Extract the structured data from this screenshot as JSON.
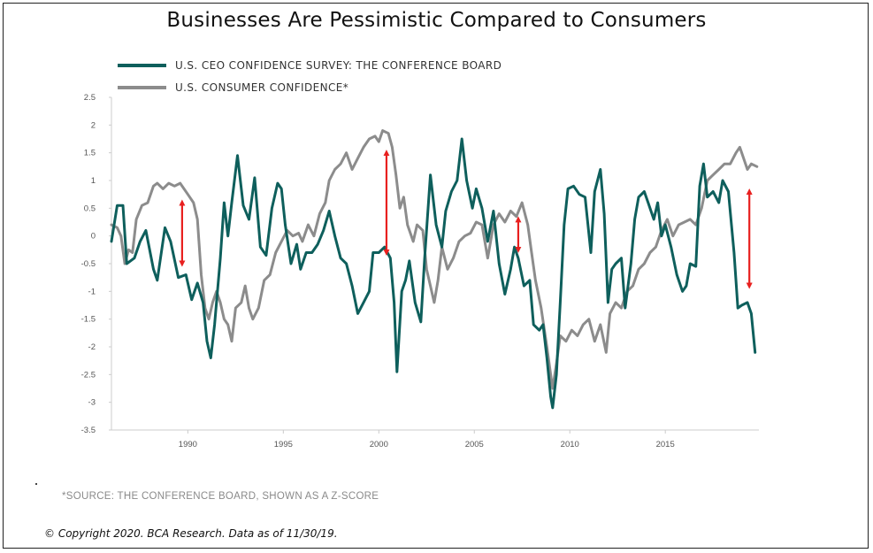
{
  "title": "Businesses Are Pessimistic Compared to Consumers",
  "source_note": "*SOURCE: THE CONFERENCE BOARD, SHOWN AS A Z-SCORE",
  "copyright": "© Copyright 2020. BCA Research. Data as of 11/30/19.",
  "colors": {
    "ceo_series": "#0e5f5c",
    "consumer_series": "#8c8c8c",
    "arrows": "#e8201f",
    "axis": "#cccccc"
  },
  "chart_data": {
    "type": "line",
    "title": "Businesses Are Pessimistic Compared to Consumers",
    "xlabel": "",
    "ylabel": "",
    "xlim": [
      1986.0,
      2019.9
    ],
    "ylim": [
      -3.5,
      2.5
    ],
    "x_ticks": [
      "1990",
      "1995",
      "2000",
      "2005",
      "2010",
      "2015"
    ],
    "y_ticks": [
      "2.5",
      "2",
      "1.5",
      "1",
      "0.5",
      "0",
      "-0.5",
      "-1",
      "-1.5",
      "-2",
      "-2.5",
      "-3",
      "-3.5"
    ],
    "legend_position": "top-left",
    "grid": false,
    "series": [
      {
        "name": "U.S. CEO CONFIDENCE SURVEY: THE CONFERENCE BOARD",
        "points": [
          [
            1986.0,
            -0.1
          ],
          [
            1986.3,
            0.55
          ],
          [
            1986.6,
            0.55
          ],
          [
            1986.8,
            -0.5
          ],
          [
            1987.2,
            -0.4
          ],
          [
            1987.5,
            -0.1
          ],
          [
            1987.8,
            0.1
          ],
          [
            1988.2,
            -0.6
          ],
          [
            1988.4,
            -0.8
          ],
          [
            1988.8,
            0.15
          ],
          [
            1989.1,
            -0.1
          ],
          [
            1989.5,
            -0.75
          ],
          [
            1989.9,
            -0.7
          ],
          [
            1990.2,
            -1.15
          ],
          [
            1990.5,
            -0.85
          ],
          [
            1990.8,
            -1.2
          ],
          [
            1991.0,
            -1.9
          ],
          [
            1991.2,
            -2.2
          ],
          [
            1991.4,
            -1.6
          ],
          [
            1991.7,
            -0.4
          ],
          [
            1991.9,
            0.6
          ],
          [
            1992.1,
            0.0
          ],
          [
            1992.3,
            0.6
          ],
          [
            1992.6,
            1.45
          ],
          [
            1992.9,
            0.55
          ],
          [
            1993.2,
            0.3
          ],
          [
            1993.5,
            1.05
          ],
          [
            1993.8,
            -0.2
          ],
          [
            1994.1,
            -0.35
          ],
          [
            1994.4,
            0.5
          ],
          [
            1994.7,
            0.95
          ],
          [
            1994.9,
            0.85
          ],
          [
            1995.1,
            0.2
          ],
          [
            1995.4,
            -0.5
          ],
          [
            1995.7,
            -0.15
          ],
          [
            1995.9,
            -0.6
          ],
          [
            1996.2,
            -0.3
          ],
          [
            1996.5,
            -0.3
          ],
          [
            1996.8,
            -0.15
          ],
          [
            1997.1,
            0.1
          ],
          [
            1997.4,
            0.45
          ],
          [
            1997.7,
            0.0
          ],
          [
            1998.0,
            -0.4
          ],
          [
            1998.3,
            -0.5
          ],
          [
            1998.6,
            -0.9
          ],
          [
            1998.9,
            -1.4
          ],
          [
            1999.2,
            -1.2
          ],
          [
            1999.5,
            -1.0
          ],
          [
            1999.7,
            -0.3
          ],
          [
            2000.0,
            -0.3
          ],
          [
            2000.3,
            -0.2
          ],
          [
            2000.6,
            -0.4
          ],
          [
            2000.8,
            -1.2
          ],
          [
            2000.95,
            -2.45
          ],
          [
            2001.2,
            -1.0
          ],
          [
            2001.4,
            -0.8
          ],
          [
            2001.6,
            -0.45
          ],
          [
            2001.9,
            -1.2
          ],
          [
            2002.2,
            -1.55
          ],
          [
            2002.4,
            -0.4
          ],
          [
            2002.7,
            1.1
          ],
          [
            2003.0,
            0.2
          ],
          [
            2003.3,
            -0.2
          ],
          [
            2003.5,
            0.45
          ],
          [
            2003.8,
            0.8
          ],
          [
            2004.1,
            1.0
          ],
          [
            2004.35,
            1.75
          ],
          [
            2004.6,
            1.0
          ],
          [
            2004.9,
            0.5
          ],
          [
            2005.1,
            0.85
          ],
          [
            2005.4,
            0.5
          ],
          [
            2005.7,
            -0.1
          ],
          [
            2006.0,
            0.45
          ],
          [
            2006.3,
            -0.5
          ],
          [
            2006.6,
            -1.05
          ],
          [
            2006.9,
            -0.6
          ],
          [
            2007.1,
            -0.2
          ],
          [
            2007.3,
            -0.4
          ],
          [
            2007.6,
            -0.9
          ],
          [
            2007.9,
            -0.8
          ],
          [
            2008.1,
            -1.6
          ],
          [
            2008.4,
            -1.7
          ],
          [
            2008.6,
            -1.6
          ],
          [
            2008.8,
            -2.2
          ],
          [
            2009.0,
            -2.9
          ],
          [
            2009.1,
            -3.1
          ],
          [
            2009.3,
            -2.5
          ],
          [
            2009.5,
            -1.2
          ],
          [
            2009.7,
            0.2
          ],
          [
            2009.9,
            0.85
          ],
          [
            2010.2,
            0.9
          ],
          [
            2010.5,
            0.75
          ],
          [
            2010.8,
            0.7
          ],
          [
            2011.1,
            -0.3
          ],
          [
            2011.3,
            0.8
          ],
          [
            2011.6,
            1.2
          ],
          [
            2011.8,
            0.4
          ],
          [
            2012.0,
            -1.2
          ],
          [
            2012.2,
            -0.6
          ],
          [
            2012.4,
            -0.5
          ],
          [
            2012.7,
            -0.4
          ],
          [
            2012.9,
            -1.3
          ],
          [
            2013.2,
            -0.5
          ],
          [
            2013.4,
            0.3
          ],
          [
            2013.6,
            0.7
          ],
          [
            2013.9,
            0.8
          ],
          [
            2014.1,
            0.6
          ],
          [
            2014.4,
            0.3
          ],
          [
            2014.6,
            0.6
          ],
          [
            2014.8,
            0.0
          ],
          [
            2015.0,
            0.2
          ],
          [
            2015.3,
            -0.2
          ],
          [
            2015.6,
            -0.7
          ],
          [
            2015.9,
            -1.0
          ],
          [
            2016.1,
            -0.9
          ],
          [
            2016.3,
            -0.5
          ],
          [
            2016.6,
            -0.55
          ],
          [
            2016.8,
            0.9
          ],
          [
            2017.0,
            1.3
          ],
          [
            2017.2,
            0.7
          ],
          [
            2017.5,
            0.8
          ],
          [
            2017.8,
            0.6
          ],
          [
            2018.0,
            1.0
          ],
          [
            2018.3,
            0.8
          ],
          [
            2018.6,
            -0.3
          ],
          [
            2018.8,
            -1.3
          ],
          [
            2019.0,
            -1.25
          ],
          [
            2019.3,
            -1.2
          ],
          [
            2019.5,
            -1.4
          ],
          [
            2019.7,
            -2.1
          ]
        ]
      },
      {
        "name": "U.S. CONSUMER CONFIDENCE*",
        "points": [
          [
            1986.0,
            0.2
          ],
          [
            1986.3,
            0.15
          ],
          [
            1986.5,
            0.0
          ],
          [
            1986.7,
            -0.5
          ],
          [
            1986.9,
            -0.25
          ],
          [
            1987.1,
            -0.3
          ],
          [
            1987.3,
            0.3
          ],
          [
            1987.6,
            0.55
          ],
          [
            1987.9,
            0.6
          ],
          [
            1988.2,
            0.9
          ],
          [
            1988.4,
            0.95
          ],
          [
            1988.7,
            0.85
          ],
          [
            1989.0,
            0.95
          ],
          [
            1989.3,
            0.9
          ],
          [
            1989.6,
            0.95
          ],
          [
            1990.0,
            0.75
          ],
          [
            1990.3,
            0.6
          ],
          [
            1990.5,
            0.3
          ],
          [
            1990.7,
            -0.7
          ],
          [
            1990.9,
            -1.3
          ],
          [
            1991.1,
            -1.5
          ],
          [
            1991.3,
            -1.2
          ],
          [
            1991.5,
            -1.0
          ],
          [
            1991.7,
            -1.2
          ],
          [
            1991.9,
            -1.5
          ],
          [
            1992.1,
            -1.6
          ],
          [
            1992.3,
            -1.9
          ],
          [
            1992.5,
            -1.3
          ],
          [
            1992.8,
            -1.2
          ],
          [
            1993.0,
            -0.9
          ],
          [
            1993.2,
            -1.3
          ],
          [
            1993.4,
            -1.5
          ],
          [
            1993.7,
            -1.3
          ],
          [
            1994.0,
            -0.8
          ],
          [
            1994.3,
            -0.7
          ],
          [
            1994.6,
            -0.3
          ],
          [
            1994.9,
            -0.1
          ],
          [
            1995.2,
            0.1
          ],
          [
            1995.5,
            0.0
          ],
          [
            1995.8,
            0.05
          ],
          [
            1996.0,
            -0.1
          ],
          [
            1996.3,
            0.2
          ],
          [
            1996.6,
            0.0
          ],
          [
            1996.9,
            0.4
          ],
          [
            1997.2,
            0.6
          ],
          [
            1997.4,
            1.0
          ],
          [
            1997.7,
            1.2
          ],
          [
            1998.0,
            1.3
          ],
          [
            1998.3,
            1.5
          ],
          [
            1998.6,
            1.2
          ],
          [
            1998.9,
            1.4
          ],
          [
            1999.2,
            1.6
          ],
          [
            1999.5,
            1.75
          ],
          [
            1999.8,
            1.8
          ],
          [
            2000.0,
            1.7
          ],
          [
            2000.2,
            1.9
          ],
          [
            2000.5,
            1.85
          ],
          [
            2000.7,
            1.6
          ],
          [
            2000.9,
            1.1
          ],
          [
            2001.1,
            0.5
          ],
          [
            2001.3,
            0.7
          ],
          [
            2001.5,
            0.2
          ],
          [
            2001.8,
            -0.1
          ],
          [
            2002.0,
            0.2
          ],
          [
            2002.3,
            0.1
          ],
          [
            2002.5,
            -0.6
          ],
          [
            2002.7,
            -0.9
          ],
          [
            2002.9,
            -1.2
          ],
          [
            2003.1,
            -0.8
          ],
          [
            2003.3,
            -0.2
          ],
          [
            2003.6,
            -0.6
          ],
          [
            2003.9,
            -0.4
          ],
          [
            2004.2,
            -0.1
          ],
          [
            2004.5,
            0.0
          ],
          [
            2004.8,
            0.05
          ],
          [
            2005.1,
            0.25
          ],
          [
            2005.4,
            0.2
          ],
          [
            2005.7,
            -0.4
          ],
          [
            2006.0,
            0.2
          ],
          [
            2006.3,
            0.4
          ],
          [
            2006.6,
            0.25
          ],
          [
            2006.9,
            0.45
          ],
          [
            2007.2,
            0.35
          ],
          [
            2007.5,
            0.6
          ],
          [
            2007.8,
            0.2
          ],
          [
            2008.0,
            -0.3
          ],
          [
            2008.2,
            -0.8
          ],
          [
            2008.5,
            -1.3
          ],
          [
            2008.8,
            -2.0
          ],
          [
            2009.0,
            -2.5
          ],
          [
            2009.1,
            -2.75
          ],
          [
            2009.3,
            -2.3
          ],
          [
            2009.5,
            -1.8
          ],
          [
            2009.8,
            -1.9
          ],
          [
            2010.1,
            -1.7
          ],
          [
            2010.4,
            -1.8
          ],
          [
            2010.7,
            -1.6
          ],
          [
            2011.0,
            -1.5
          ],
          [
            2011.3,
            -1.9
          ],
          [
            2011.6,
            -1.6
          ],
          [
            2011.9,
            -2.1
          ],
          [
            2012.1,
            -1.4
          ],
          [
            2012.4,
            -1.2
          ],
          [
            2012.7,
            -1.3
          ],
          [
            2013.0,
            -1.0
          ],
          [
            2013.3,
            -0.9
          ],
          [
            2013.6,
            -0.6
          ],
          [
            2013.9,
            -0.5
          ],
          [
            2014.2,
            -0.3
          ],
          [
            2014.5,
            -0.2
          ],
          [
            2014.8,
            0.1
          ],
          [
            2015.1,
            0.3
          ],
          [
            2015.4,
            0.0
          ],
          [
            2015.7,
            0.2
          ],
          [
            2016.0,
            0.25
          ],
          [
            2016.3,
            0.3
          ],
          [
            2016.6,
            0.2
          ],
          [
            2016.9,
            0.5
          ],
          [
            2017.2,
            1.0
          ],
          [
            2017.5,
            1.1
          ],
          [
            2017.8,
            1.2
          ],
          [
            2018.1,
            1.3
          ],
          [
            2018.4,
            1.3
          ],
          [
            2018.7,
            1.5
          ],
          [
            2018.9,
            1.6
          ],
          [
            2019.1,
            1.4
          ],
          [
            2019.3,
            1.2
          ],
          [
            2019.5,
            1.3
          ],
          [
            2019.8,
            1.25
          ]
        ]
      }
    ],
    "annotations": [
      {
        "type": "double-arrow",
        "x": 1989.7,
        "y1": 0.6,
        "y2": -0.5
      },
      {
        "type": "double-arrow",
        "x": 2000.4,
        "y1": 1.5,
        "y2": -0.3
      },
      {
        "type": "double-arrow",
        "x": 2007.3,
        "y1": 0.3,
        "y2": -0.25
      },
      {
        "type": "double-arrow",
        "x": 2019.4,
        "y1": 0.8,
        "y2": -0.9
      }
    ]
  }
}
